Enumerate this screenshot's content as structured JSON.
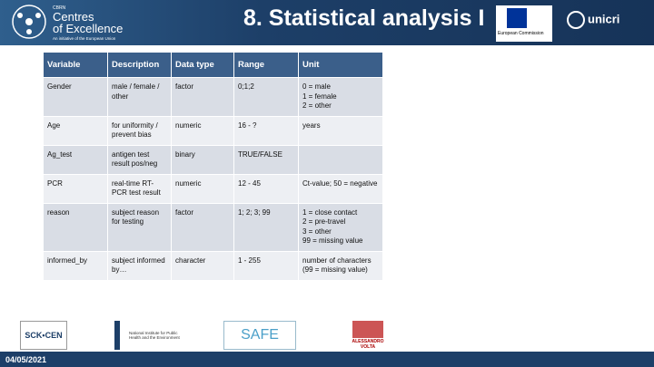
{
  "header": {
    "logo": {
      "small": "CBRN",
      "line1": "Centres",
      "line2": "of Excellence",
      "tagline": "An initiative of the European Union"
    },
    "title": "8. Statistical analysis I",
    "eu_logo": "European Commission",
    "unicri_logo": "unicri"
  },
  "table": {
    "columns": [
      "Variable",
      "Description",
      "Data type",
      "Range",
      "Unit"
    ],
    "rows": [
      [
        "Gender",
        "male / female / other",
        "factor",
        "0;1;2",
        "0 = male\n1 = female\n2 = other"
      ],
      [
        "Age",
        "for uniformity / prevent bias",
        "numeric",
        "16 - ?",
        "years"
      ],
      [
        "Ag_test",
        "antigen test result pos/neg",
        "binary",
        "TRUE/FALSE",
        ""
      ],
      [
        "PCR",
        "real-time RT-PCR test result",
        "numeric",
        "12 - 45",
        "Ct-value; 50 = negative"
      ],
      [
        "reason",
        "subject reason for testing",
        "factor",
        "1; 2; 3; 99",
        "1 = close contact\n2 = pre-travel\n3 = other\n99 = missing value"
      ],
      [
        "informed_by",
        "subject informed by…",
        "character",
        "1 - 255",
        "number of characters (99 = missing value)"
      ]
    ]
  },
  "footer": {
    "logos": [
      "SCK•CEN",
      "National Institute for Public Health and the Environment",
      "SAFE",
      "ALESSANDRO VOLTA"
    ],
    "date": "04/05/2021"
  }
}
